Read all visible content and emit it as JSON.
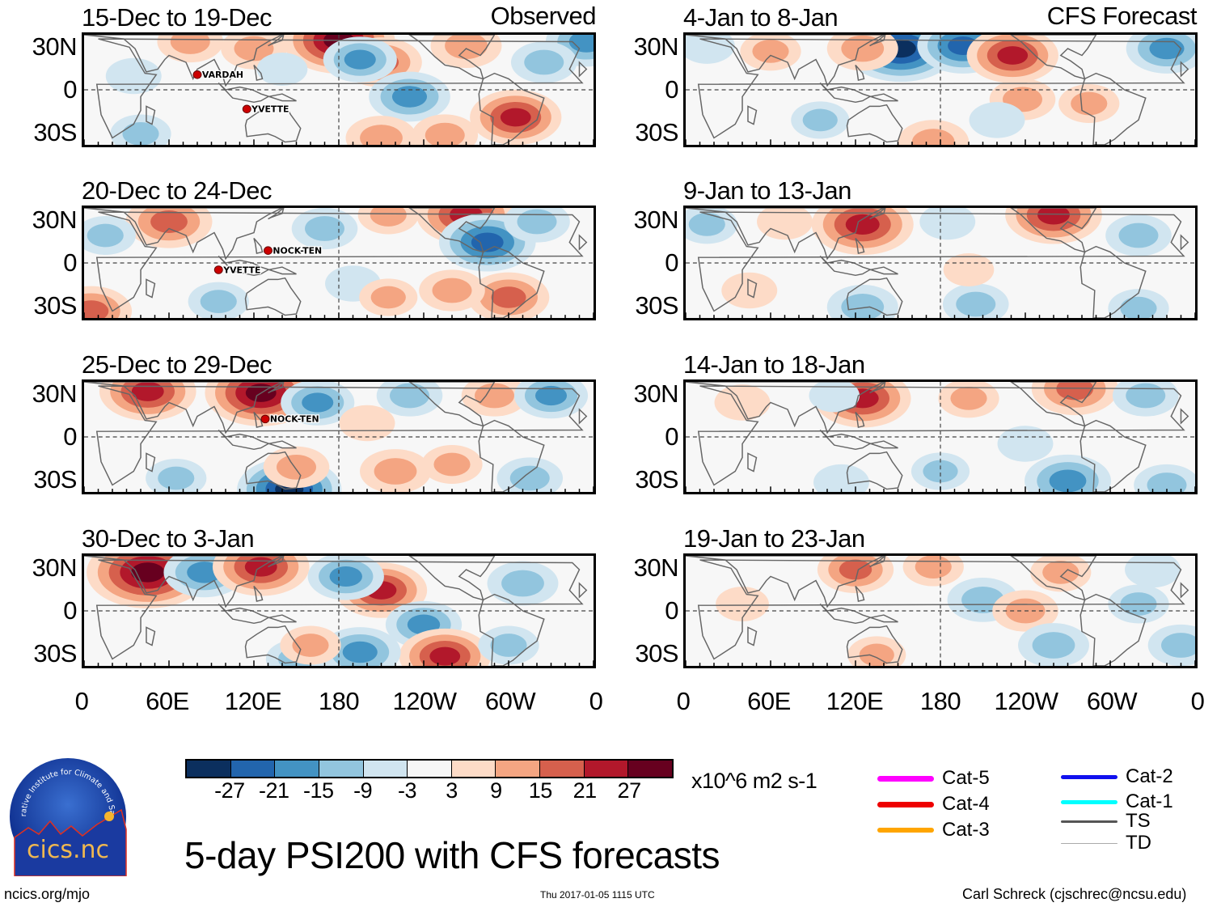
{
  "chart_data": {
    "type": "heatmap",
    "title": "5-day PSI200 with CFS forecasts",
    "variable": "200-hPa streamfunction anomaly (PSI200)",
    "units": "x10^6 m2 s-1",
    "colorbar": {
      "ticks": [
        "-27",
        "-21",
        "-15",
        "-9",
        "-3",
        "3",
        "9",
        "15",
        "21",
        "27"
      ],
      "colors": [
        "#0b2f5e",
        "#2265ad",
        "#4393c3",
        "#92c5de",
        "#d1e5f0",
        "#f7f7f7",
        "#fddbc7",
        "#f4a582",
        "#d6604d",
        "#b2182b",
        "#67001f"
      ]
    },
    "x_ticks": [
      "0",
      "60E",
      "120E",
      "180",
      "120W",
      "60W",
      "0"
    ],
    "y_ticks": [
      "30N",
      "0",
      "30S"
    ],
    "xlim": [
      0,
      360
    ],
    "ylim": [
      -40,
      40
    ],
    "columns": [
      {
        "header": "Observed",
        "panels": [
          {
            "period": "15-Dec to 19-Dec",
            "storms": [
              {
                "name": "VARDAH",
                "lon": 80,
                "lat": 11
              },
              {
                "name": "YVETTE",
                "lon": 115,
                "lat": -14
              }
            ],
            "anomalies": [
              {
                "lon": 180,
                "lat": 36,
                "value": 30
              },
              {
                "lon": 120,
                "lat": 30,
                "value": 12
              },
              {
                "lon": 210,
                "lat": 20,
                "value": 18
              },
              {
                "lon": 195,
                "lat": 22,
                "value": -15
              },
              {
                "lon": 230,
                "lat": -5,
                "value": -18
              },
              {
                "lon": 305,
                "lat": -20,
                "value": 22
              },
              {
                "lon": 270,
                "lat": 32,
                "value": 14
              },
              {
                "lon": 355,
                "lat": 35,
                "value": -18
              },
              {
                "lon": 325,
                "lat": 20,
                "value": -12
              },
              {
                "lon": 75,
                "lat": 35,
                "value": 12
              },
              {
                "lon": 35,
                "lat": 10,
                "value": -8
              },
              {
                "lon": 40,
                "lat": -32,
                "value": -10
              },
              {
                "lon": 210,
                "lat": -35,
                "value": 14
              },
              {
                "lon": 255,
                "lat": -33,
                "value": 12
              },
              {
                "lon": 140,
                "lat": 15,
                "value": -6
              }
            ]
          },
          {
            "period": "20-Dec to 24-Dec",
            "storms": [
              {
                "name": "NOCK-TEN",
                "lon": 130,
                "lat": 9
              },
              {
                "name": "YVETTE",
                "lon": 95,
                "lat": -5
              }
            ],
            "anomalies": [
              {
                "lon": 60,
                "lat": 30,
                "value": 20
              },
              {
                "lon": 15,
                "lat": 20,
                "value": -10
              },
              {
                "lon": 270,
                "lat": 35,
                "value": 25
              },
              {
                "lon": 285,
                "lat": 15,
                "value": -24
              },
              {
                "lon": 170,
                "lat": 25,
                "value": -12
              },
              {
                "lon": 215,
                "lat": 35,
                "value": 10
              },
              {
                "lon": 320,
                "lat": 30,
                "value": -12
              },
              {
                "lon": 300,
                "lat": -25,
                "value": 18
              },
              {
                "lon": 260,
                "lat": -20,
                "value": 12
              },
              {
                "lon": 5,
                "lat": -35,
                "value": 18
              },
              {
                "lon": 95,
                "lat": -28,
                "value": -10
              },
              {
                "lon": 190,
                "lat": -15,
                "value": -8
              },
              {
                "lon": 215,
                "lat": -25,
                "value": 9
              }
            ]
          },
          {
            "period": "25-Dec to 29-Dec",
            "storms": [
              {
                "name": "NOCK-TEN",
                "lon": 128,
                "lat": 13
              }
            ],
            "anomalies": [
              {
                "lon": 45,
                "lat": 33,
                "value": 24
              },
              {
                "lon": 125,
                "lat": 32,
                "value": 30
              },
              {
                "lon": 165,
                "lat": 25,
                "value": -15
              },
              {
                "lon": 230,
                "lat": 30,
                "value": -12
              },
              {
                "lon": 290,
                "lat": 30,
                "value": 12
              },
              {
                "lon": 330,
                "lat": 30,
                "value": -15
              },
              {
                "lon": 145,
                "lat": -38,
                "value": -27
              },
              {
                "lon": 150,
                "lat": -22,
                "value": 12
              },
              {
                "lon": 220,
                "lat": -25,
                "value": 14
              },
              {
                "lon": 260,
                "lat": -20,
                "value": 10
              },
              {
                "lon": 65,
                "lat": -30,
                "value": -10
              },
              {
                "lon": 315,
                "lat": -30,
                "value": -12
              },
              {
                "lon": 200,
                "lat": 10,
                "value": 8
              }
            ]
          },
          {
            "period": "30-Dec to 3-Jan",
            "storms": [],
            "anomalies": [
              {
                "lon": 45,
                "lat": 28,
                "value": 34
              },
              {
                "lon": 85,
                "lat": 28,
                "value": -18
              },
              {
                "lon": 125,
                "lat": 32,
                "value": 24
              },
              {
                "lon": 210,
                "lat": 15,
                "value": 22
              },
              {
                "lon": 185,
                "lat": 25,
                "value": -16
              },
              {
                "lon": 310,
                "lat": 20,
                "value": -14
              },
              {
                "lon": 240,
                "lat": -10,
                "value": -16
              },
              {
                "lon": 255,
                "lat": -33,
                "value": 22
              },
              {
                "lon": 195,
                "lat": -30,
                "value": -18
              },
              {
                "lon": 150,
                "lat": -35,
                "value": -10
              },
              {
                "lon": 300,
                "lat": -25,
                "value": -10
              },
              {
                "lon": 160,
                "lat": -25,
                "value": 10
              }
            ]
          }
        ]
      },
      {
        "header": "CFS Forecast",
        "panels": [
          {
            "period": "4-Jan to 8-Jan",
            "storms": [],
            "anomalies": [
              {
                "lon": 152,
                "lat": 30,
                "value": -30
              },
              {
                "lon": 125,
                "lat": 30,
                "value": 14
              },
              {
                "lon": 196,
                "lat": 32,
                "value": -22
              },
              {
                "lon": 231,
                "lat": 25,
                "value": 22
              },
              {
                "lon": 238,
                "lat": -7,
                "value": 12
              },
              {
                "lon": 340,
                "lat": 30,
                "value": -18
              },
              {
                "lon": 60,
                "lat": 28,
                "value": 10
              },
              {
                "lon": 285,
                "lat": -10,
                "value": 10
              },
              {
                "lon": 95,
                "lat": -22,
                "value": -9
              },
              {
                "lon": 175,
                "lat": -38,
                "value": 14
              },
              {
                "lon": 15,
                "lat": 32,
                "value": -8
              },
              {
                "lon": 220,
                "lat": -22,
                "value": -8
              }
            ]
          },
          {
            "period": "9-Jan to 13-Jan",
            "storms": [],
            "anomalies": [
              {
                "lon": 125,
                "lat": 28,
                "value": 26
              },
              {
                "lon": 260,
                "lat": 35,
                "value": 24
              },
              {
                "lon": 15,
                "lat": 28,
                "value": -10
              },
              {
                "lon": 320,
                "lat": 20,
                "value": -12
              },
              {
                "lon": 70,
                "lat": 30,
                "value": 8
              },
              {
                "lon": 125,
                "lat": -32,
                "value": -14
              },
              {
                "lon": 205,
                "lat": -30,
                "value": -12
              },
              {
                "lon": 320,
                "lat": -33,
                "value": -10
              },
              {
                "lon": 185,
                "lat": 30,
                "value": -8
              },
              {
                "lon": 45,
                "lat": -20,
                "value": 8
              },
              {
                "lon": 200,
                "lat": -5,
                "value": 6
              }
            ]
          },
          {
            "period": "14-Jan to 18-Jan",
            "storms": [],
            "anomalies": [
              {
                "lon": 125,
                "lat": 28,
                "value": 24
              },
              {
                "lon": 275,
                "lat": 35,
                "value": 20
              },
              {
                "lon": 200,
                "lat": 28,
                "value": 10
              },
              {
                "lon": 325,
                "lat": 30,
                "value": -12
              },
              {
                "lon": 270,
                "lat": -32,
                "value": -20
              },
              {
                "lon": 340,
                "lat": -35,
                "value": -12
              },
              {
                "lon": 105,
                "lat": 30,
                "value": -6
              },
              {
                "lon": 40,
                "lat": 25,
                "value": 8
              },
              {
                "lon": 180,
                "lat": -25,
                "value": -9
              },
              {
                "lon": 110,
                "lat": -33,
                "value": -8
              },
              {
                "lon": 240,
                "lat": -5,
                "value": -8
              }
            ]
          },
          {
            "period": "19-Jan to 23-Jan",
            "storms": [],
            "anomalies": [
              {
                "lon": 120,
                "lat": 30,
                "value": 16
              },
              {
                "lon": 175,
                "lat": 32,
                "value": 10
              },
              {
                "lon": 210,
                "lat": 8,
                "value": -14
              },
              {
                "lon": 240,
                "lat": 0,
                "value": 12
              },
              {
                "lon": 260,
                "lat": -25,
                "value": -14
              },
              {
                "lon": 265,
                "lat": 28,
                "value": 10
              },
              {
                "lon": 320,
                "lat": 5,
                "value": -10
              },
              {
                "lon": 350,
                "lat": -25,
                "value": -12
              },
              {
                "lon": 135,
                "lat": -32,
                "value": 9
              },
              {
                "lon": 40,
                "lat": 5,
                "value": 7
              },
              {
                "lon": 330,
                "lat": 30,
                "value": -8
              }
            ]
          }
        ]
      }
    ]
  },
  "legend": {
    "tracks": [
      {
        "label": "Cat-5",
        "color": "#ff00ff"
      },
      {
        "label": "Cat-4",
        "color": "#ee0000"
      },
      {
        "label": "Cat-3",
        "color": "#ffa500"
      },
      {
        "label": "Cat-2",
        "color": "#1010ee"
      },
      {
        "label": "Cat-1",
        "color": "#00ffff"
      },
      {
        "label": "TS",
        "color": "#555555"
      },
      {
        "label": "TD",
        "color": "#aaaaaa"
      }
    ]
  },
  "logo": {
    "text": "cics.nc",
    "ring_text": "Cooperative Institute for Climate and Satellites"
  },
  "footer": {
    "left": "ncics.org/mjo",
    "center": "Thu 2017-01-05 1115 UTC",
    "right": "Carl Schreck (cjschrec@ncsu.edu)"
  }
}
